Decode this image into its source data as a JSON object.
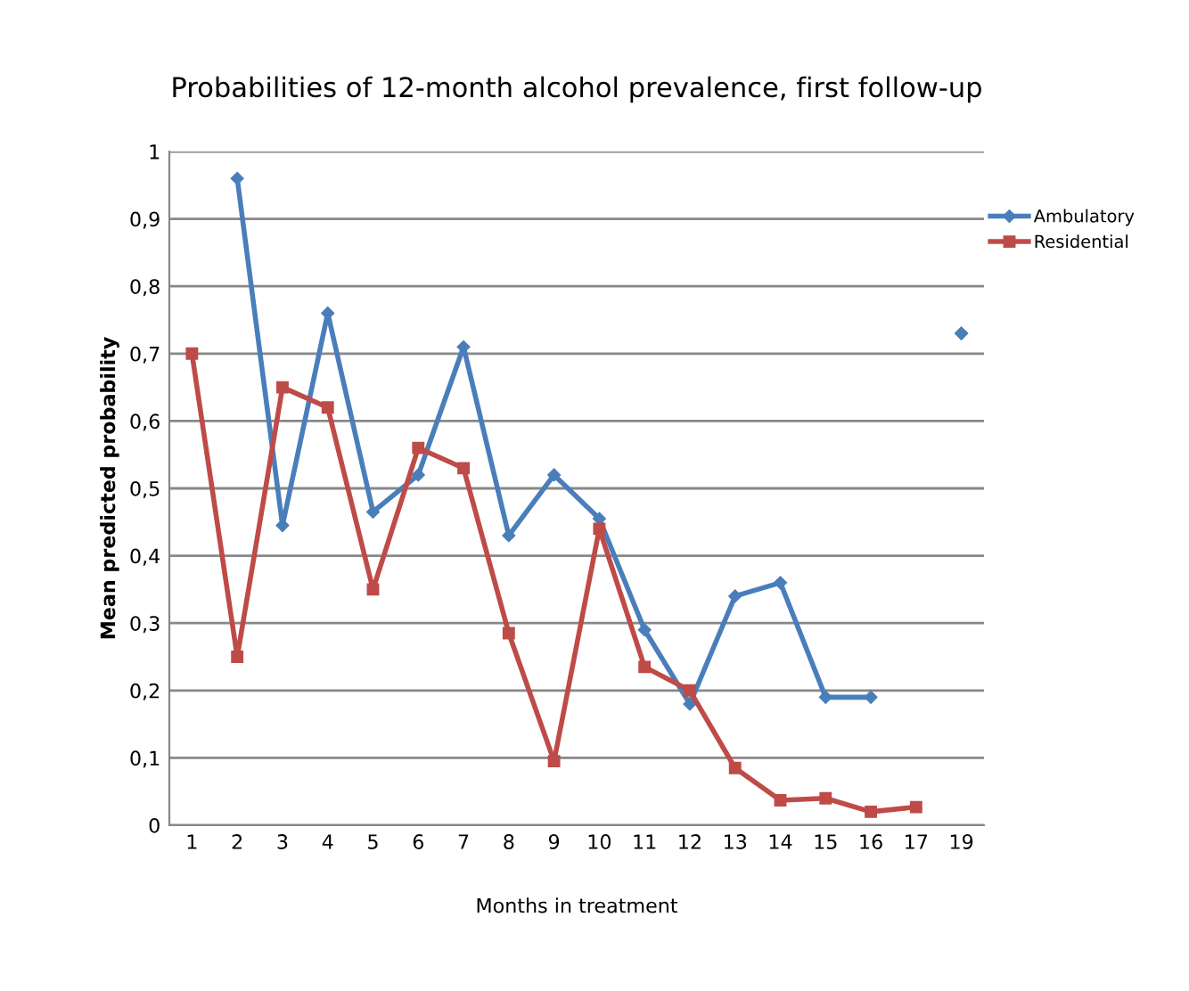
{
  "chart_data": {
    "type": "line",
    "title": "Probabilities of 12-month alcohol prevalence, first follow-up",
    "xlabel": "Months in treatment",
    "ylabel": "Mean predicted probability",
    "categories": [
      "1",
      "2",
      "3",
      "4",
      "5",
      "6",
      "7",
      "8",
      "9",
      "10",
      "11",
      "12",
      "13",
      "14",
      "15",
      "16",
      "17",
      "19"
    ],
    "series": [
      {
        "name": "Ambulatory",
        "color": "#4a7ebb",
        "marker": "diamond",
        "values": [
          null,
          0.96,
          0.445,
          0.76,
          0.465,
          0.52,
          0.71,
          0.43,
          0.52,
          0.455,
          0.29,
          0.18,
          0.34,
          0.36,
          0.19,
          0.19,
          null,
          0.73
        ]
      },
      {
        "name": "Residential",
        "color": "#be4b48",
        "marker": "square",
        "values": [
          0.7,
          0.25,
          0.65,
          0.62,
          0.35,
          0.56,
          0.53,
          0.285,
          0.095,
          0.44,
          0.235,
          0.2,
          0.085,
          0.037,
          0.04,
          0.02,
          0.027,
          null
        ]
      }
    ],
    "ylim": [
      0,
      1
    ],
    "yticks": [
      0,
      {
        "value": 0.1,
        "label": "0,1"
      },
      {
        "value": 0.2,
        "label": "0,2"
      },
      {
        "value": 0.3,
        "label": "0,3"
      },
      {
        "value": 0.4,
        "label": "0,4"
      },
      {
        "value": 0.5,
        "label": "0,5"
      },
      {
        "value": 0.6,
        "label": "0,6"
      },
      {
        "value": 0.7,
        "label": "0,7"
      },
      {
        "value": 0.8,
        "label": "0,8"
      },
      {
        "value": 0.9,
        "label": "0,9"
      },
      1
    ],
    "grid": "y",
    "legend": "right",
    "line_style": "solid"
  }
}
